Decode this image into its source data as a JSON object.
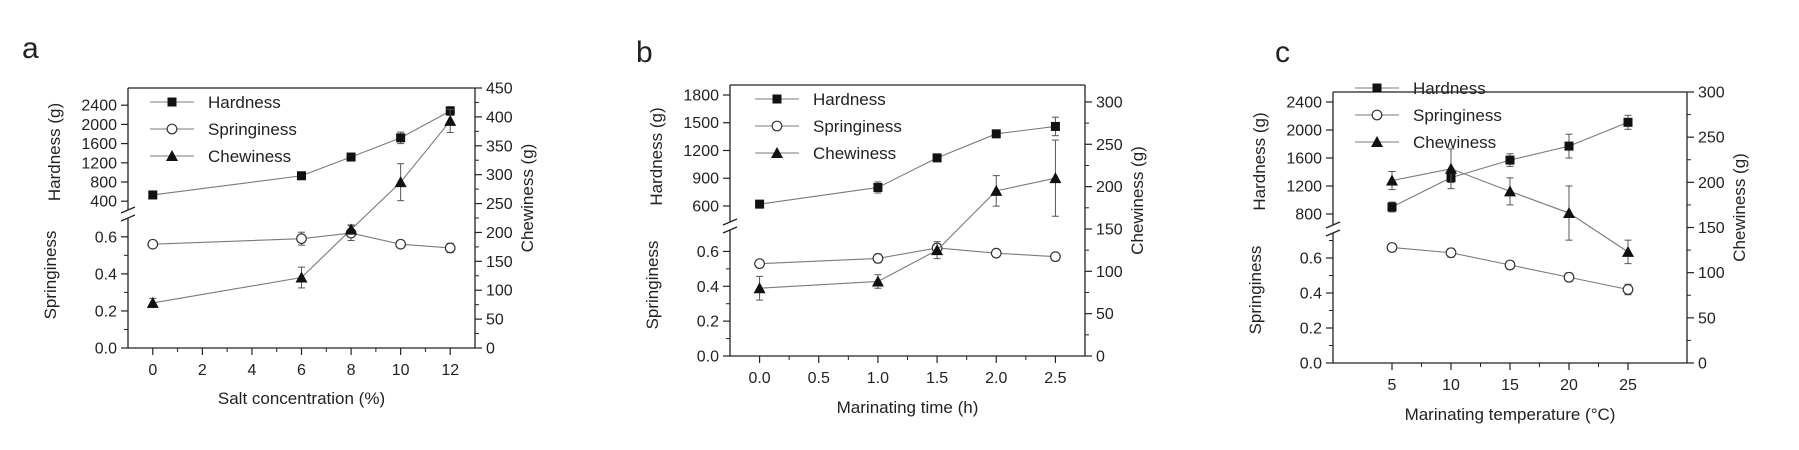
{
  "chart_data": [
    {
      "type": "line",
      "panel_label": "a",
      "xlabel": "Salt concentration (%)",
      "x_ticks": [
        "0",
        "2",
        "4",
        "6",
        "8",
        "10",
        "12"
      ],
      "xlim": [
        -1,
        13
      ],
      "x": [
        0,
        6,
        8,
        10,
        12
      ],
      "upper": {
        "ylabel": "Hardness (g)",
        "ylim": [
          300,
          2550
        ],
        "y_ticks": [
          "400",
          "800",
          "1200",
          "1600",
          "2000",
          "2400"
        ],
        "series": [
          {
            "name": "Hardness",
            "marker": "square",
            "values": [
              530,
              930,
              1320,
              1720,
              2280
            ],
            "errors": [
              25,
              60,
              35,
              120,
              90
            ]
          }
        ]
      },
      "lower": {
        "ylabel": "Springiness",
        "ylim": [
          0,
          0.68
        ],
        "y_ticks": [
          "0.0",
          "0.2",
          "0.4",
          "0.6"
        ],
        "series": [
          {
            "name": "Springiness",
            "marker": "circle",
            "values": [
              0.56,
              0.59,
              0.62,
              0.56,
              0.54
            ],
            "errors": [
              0.01,
              0.035,
              0.04,
              0.012,
              0.025
            ]
          }
        ]
      },
      "right": {
        "ylabel": "Chewiness (g)",
        "ylim": [
          0,
          450
        ],
        "y_ticks": [
          "0",
          "50",
          "100",
          "150",
          "200",
          "250",
          "300",
          "350",
          "400",
          "450"
        ],
        "series": [
          {
            "name": "Chewiness",
            "marker": "triangle",
            "values": [
              78,
              122,
              205,
              287,
              393
            ],
            "errors": [
              8,
              18,
              8,
              32,
              20
            ]
          }
        ]
      },
      "legend": [
        "Hardness",
        "Springiness",
        "Chewiness"
      ],
      "legend_position": "top-left"
    },
    {
      "type": "line",
      "panel_label": "b",
      "xlabel": "Marinating time (h)",
      "x_ticks": [
        "0.0",
        "0.5",
        "1.0",
        "1.5",
        "2.0",
        "2.5"
      ],
      "xlim": [
        -0.25,
        2.75
      ],
      "x": [
        0,
        1.0,
        1.5,
        2.0,
        2.5
      ],
      "upper": {
        "ylabel": "Hardness (g)",
        "ylim": [
          470,
          1800
        ],
        "y_ticks": [
          "600",
          "900",
          "1200",
          "1500",
          "1800"
        ],
        "series": [
          {
            "name": "Hardness",
            "marker": "square",
            "values": [
              620,
              800,
              1120,
              1380,
              1460
            ],
            "errors": [
              20,
              60,
              30,
              40,
              100
            ]
          }
        ]
      },
      "lower": {
        "ylabel": "Springiness",
        "ylim": [
          0,
          0.7
        ],
        "y_ticks": [
          "0.0",
          "0.2",
          "0.4",
          "0.6"
        ],
        "series": [
          {
            "name": "Springiness",
            "marker": "circle",
            "values": [
              0.53,
              0.56,
              0.62,
              0.59,
              0.57
            ],
            "errors": [
              0.015,
              0.025,
              0.015,
              0.01,
              0.01
            ]
          }
        ]
      },
      "right": {
        "ylabel": "Chewiness (g)",
        "ylim": [
          0,
          320
        ],
        "y_ticks": [
          "0",
          "50",
          "100",
          "150",
          "200",
          "250",
          "300"
        ],
        "series": [
          {
            "name": "Chewiness",
            "marker": "triangle",
            "values": [
              80,
              88,
              125,
              195,
              210
            ],
            "errors": [
              14,
              8,
              10,
              18,
              45
            ]
          }
        ]
      },
      "legend": [
        "Hardness",
        "Springiness",
        "Chewiness"
      ],
      "legend_position": "top-left"
    },
    {
      "type": "line",
      "panel_label": "c",
      "xlabel": "Marinating temperature (°C)",
      "x_ticks": [
        "5",
        "10",
        "15",
        "20",
        "25"
      ],
      "xlim": [
        0,
        30
      ],
      "x": [
        5,
        10,
        15,
        20,
        25
      ],
      "upper": {
        "ylabel": "Hardness (g)",
        "ylim": [
          700,
          2400
        ],
        "y_ticks": [
          "800",
          "1200",
          "1600",
          "2000",
          "2400"
        ],
        "series": [
          {
            "name": "Hardness",
            "marker": "square",
            "values": [
              900,
              1320,
              1570,
              1770,
              2110
            ],
            "errors": [
              70,
              70,
              90,
              170,
              100
            ]
          }
        ]
      },
      "lower": {
        "ylabel": "Springiness",
        "ylim": [
          0,
          0.72
        ],
        "y_ticks": [
          "0.0",
          "0.2",
          "0.4",
          "0.6"
        ],
        "series": [
          {
            "name": "Springiness",
            "marker": "circle",
            "values": [
              0.66,
              0.63,
              0.56,
              0.49,
              0.42
            ],
            "errors": [
              0.01,
              0.025,
              0.01,
              0.025,
              0.03
            ]
          }
        ]
      },
      "right": {
        "ylabel": "Chewiness (g)",
        "ylim": [
          0,
          300
        ],
        "y_ticks": [
          "0",
          "50",
          "100",
          "150",
          "200",
          "250",
          "300"
        ],
        "series": [
          {
            "name": "Chewiness",
            "marker": "triangle",
            "values": [
              202,
              215,
              190,
              166,
              123
            ],
            "errors": [
              10,
              22,
              15,
              30,
              13
            ]
          }
        ]
      },
      "legend": [
        "Hardness",
        "Springiness",
        "Chewiness"
      ],
      "legend_position": "top-left"
    }
  ]
}
